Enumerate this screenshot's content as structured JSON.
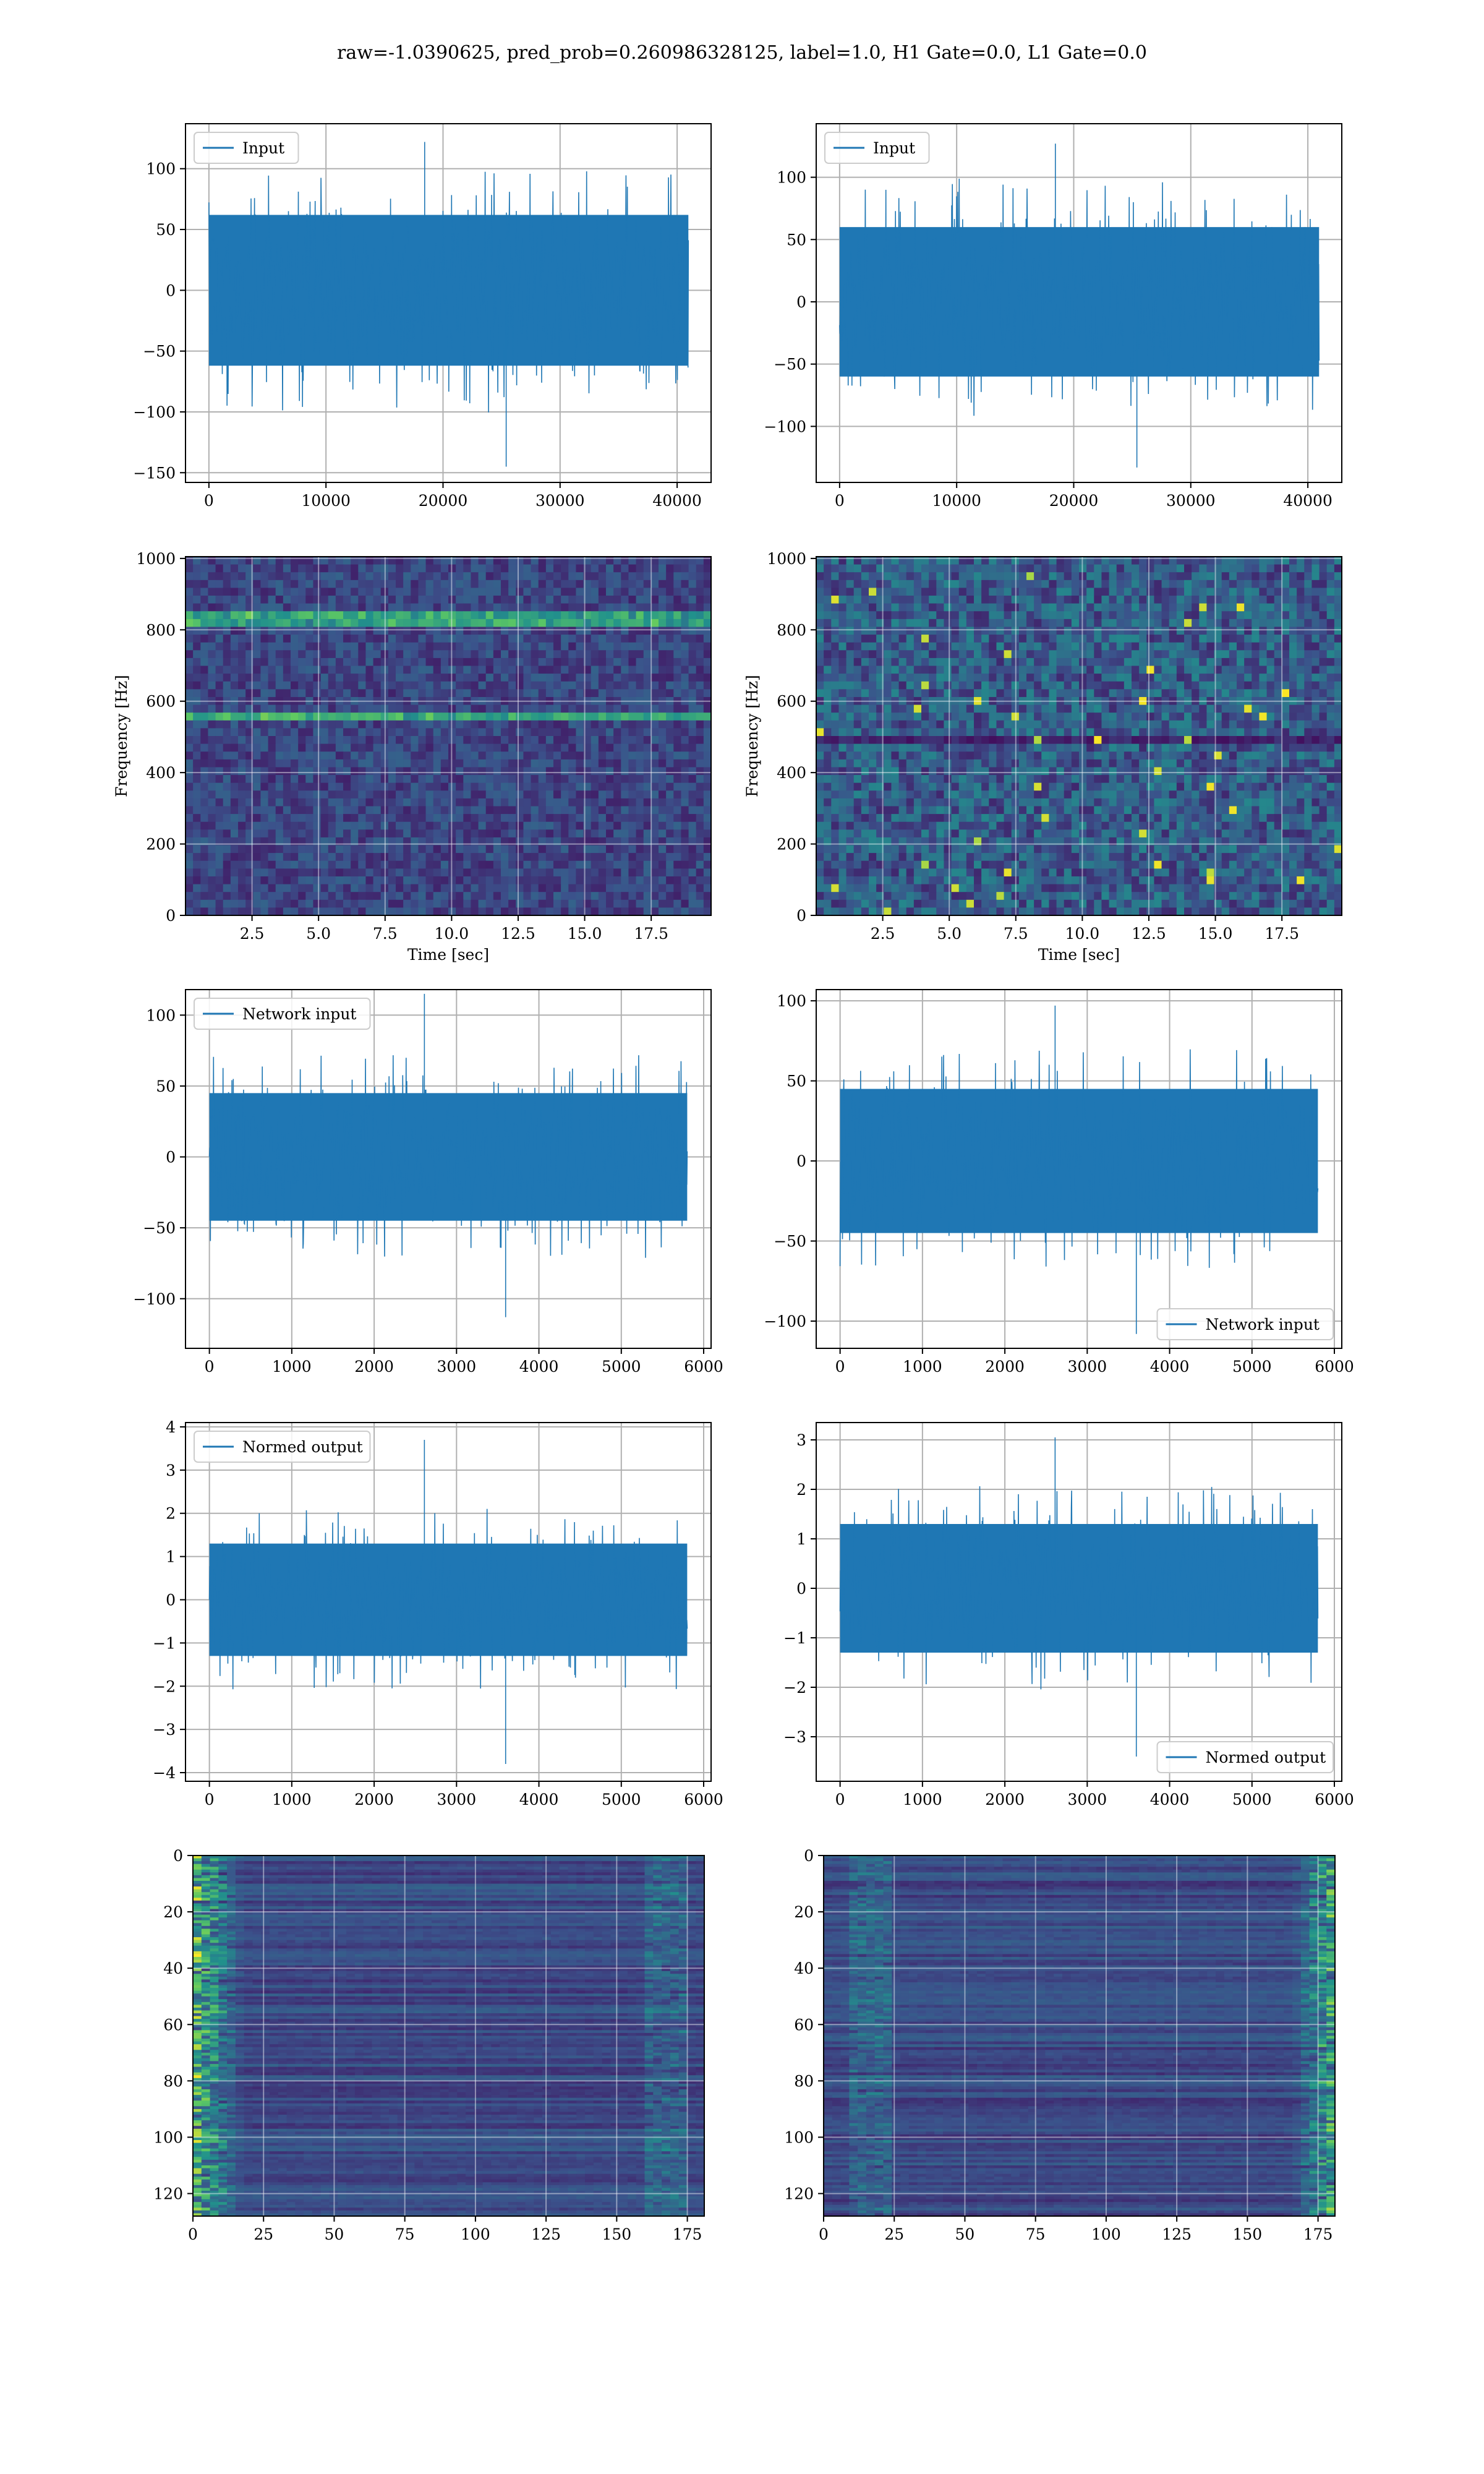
{
  "title": "raw=-1.0390625, pred_prob=0.260986328125, label=1.0, H1 Gate=0.0, L1 Gate=0.0",
  "colors": {
    "line": "#1f77b4",
    "grid": "#b0b0b0",
    "viridis_dark": "#440154",
    "viridis_mid": "#21918c",
    "viridis_bright": "#fde725"
  },
  "chart_data": [
    {
      "id": "r1l",
      "type": "line",
      "legend": "Input",
      "legend_loc": "upper left",
      "x": [
        0,
        40960
      ],
      "xlim": [
        -2000,
        42900
      ],
      "ylim": [
        -158,
        137
      ],
      "xticks": [
        0,
        10000,
        20000,
        30000,
        40000
      ],
      "yticks": [
        -150,
        -100,
        -50,
        0,
        50,
        100
      ],
      "xticklabels": [
        "0",
        "10000",
        "20000",
        "30000",
        "40000"
      ],
      "yticklabels": [
        "−150",
        "−100",
        "−50",
        "0",
        "50",
        "100"
      ],
      "envelope": {
        "typical": 62,
        "max": 122,
        "min": -145
      },
      "grid": true,
      "xlabel": "",
      "ylabel": ""
    },
    {
      "id": "r1r",
      "type": "line",
      "legend": "Input",
      "legend_loc": "upper left",
      "x": [
        0,
        40960
      ],
      "xlim": [
        -2000,
        42900
      ],
      "ylim": [
        -145,
        143
      ],
      "xticks": [
        0,
        10000,
        20000,
        30000,
        40000
      ],
      "yticks": [
        -100,
        -50,
        0,
        50,
        100
      ],
      "xticklabels": [
        "0",
        "10000",
        "20000",
        "30000",
        "40000"
      ],
      "yticklabels": [
        "−100",
        "−50",
        "0",
        "50",
        "100"
      ],
      "envelope": {
        "typical": 60,
        "max": 127,
        "min": -133
      },
      "grid": true,
      "xlabel": "",
      "ylabel": ""
    },
    {
      "id": "r2l",
      "type": "heatmap",
      "xlim": [
        0,
        19.75
      ],
      "ylim": [
        0,
        1005
      ],
      "xticks": [
        2.5,
        5.0,
        7.5,
        10.0,
        12.5,
        15.0,
        17.5
      ],
      "yticks": [
        0,
        200,
        400,
        600,
        800,
        1000
      ],
      "xticklabels": [
        "2.5",
        "5.0",
        "7.5",
        "10.0",
        "12.5",
        "15.0",
        "17.5"
      ],
      "yticklabels": [
        "0",
        "200",
        "400",
        "600",
        "800",
        "1000"
      ],
      "xlabel": "Time [sec]",
      "ylabel": "Frequency [Hz]",
      "colormap": "viridis",
      "bright_bands_hz": [
        830,
        555
      ],
      "grid": true
    },
    {
      "id": "r2r",
      "type": "heatmap",
      "xlim": [
        0,
        19.75
      ],
      "ylim": [
        0,
        1005
      ],
      "xticks": [
        2.5,
        5.0,
        7.5,
        10.0,
        12.5,
        15.0,
        17.5
      ],
      "yticks": [
        0,
        200,
        400,
        600,
        800,
        1000
      ],
      "xticklabels": [
        "2.5",
        "5.0",
        "7.5",
        "10.0",
        "12.5",
        "15.0",
        "17.5"
      ],
      "yticklabels": [
        "0",
        "200",
        "400",
        "600",
        "800",
        "1000"
      ],
      "xlabel": "Time [sec]",
      "ylabel": "Frequency [Hz]",
      "colormap": "viridis",
      "dark_band_hz": 490,
      "grid": true
    },
    {
      "id": "r3l",
      "type": "line",
      "legend": "Network input",
      "legend_loc": "upper left",
      "x": [
        0,
        5800
      ],
      "xlim": [
        -290,
        6090
      ],
      "ylim": [
        -135,
        118
      ],
      "xticks": [
        0,
        1000,
        2000,
        3000,
        4000,
        5000,
        6000
      ],
      "yticks": [
        -100,
        -50,
        0,
        50,
        100
      ],
      "xticklabels": [
        "0",
        "1000",
        "2000",
        "3000",
        "4000",
        "5000",
        "6000"
      ],
      "yticklabels": [
        "−100",
        "−50",
        "0",
        "50",
        "100"
      ],
      "envelope": {
        "typical": 45,
        "max": 115,
        "min": -113
      },
      "grid": true,
      "xlabel": "",
      "ylabel": ""
    },
    {
      "id": "r3r",
      "type": "line",
      "legend": "Network input",
      "legend_loc": "lower right",
      "x": [
        0,
        5800
      ],
      "xlim": [
        -290,
        6090
      ],
      "ylim": [
        -117,
        107
      ],
      "xticks": [
        0,
        1000,
        2000,
        3000,
        4000,
        5000,
        6000
      ],
      "yticks": [
        -100,
        -50,
        0,
        50,
        100
      ],
      "xticklabels": [
        "0",
        "1000",
        "2000",
        "3000",
        "4000",
        "5000",
        "6000"
      ],
      "yticklabels": [
        "−100",
        "−50",
        "0",
        "50",
        "100"
      ],
      "envelope": {
        "typical": 45,
        "max": 97,
        "min": -108
      },
      "grid": true,
      "xlabel": "",
      "ylabel": ""
    },
    {
      "id": "r4l",
      "type": "line",
      "legend": "Normed output",
      "legend_loc": "upper left",
      "x": [
        0,
        5800
      ],
      "xlim": [
        -290,
        6090
      ],
      "ylim": [
        -4.2,
        4.1
      ],
      "xticks": [
        0,
        1000,
        2000,
        3000,
        4000,
        5000,
        6000
      ],
      "yticks": [
        -4,
        -3,
        -2,
        -1,
        0,
        1,
        2,
        3,
        4
      ],
      "xticklabels": [
        "0",
        "1000",
        "2000",
        "3000",
        "4000",
        "5000",
        "6000"
      ],
      "yticklabels": [
        "−4",
        "−3",
        "−2",
        "−1",
        "0",
        "1",
        "2",
        "3",
        "4"
      ],
      "envelope": {
        "typical": 1.3,
        "max": 3.7,
        "min": -3.8
      },
      "grid": true,
      "xlabel": "",
      "ylabel": ""
    },
    {
      "id": "r4r",
      "type": "line",
      "legend": "Normed output",
      "legend_loc": "lower right",
      "x": [
        0,
        5800
      ],
      "xlim": [
        -290,
        6090
      ],
      "ylim": [
        -3.9,
        3.35
      ],
      "xticks": [
        0,
        1000,
        2000,
        3000,
        4000,
        5000,
        6000
      ],
      "yticks": [
        -3,
        -2,
        -1,
        0,
        1,
        2,
        3
      ],
      "xticklabels": [
        "0",
        "1000",
        "2000",
        "3000",
        "4000",
        "5000",
        "6000"
      ],
      "yticklabels": [
        "−3",
        "−2",
        "−1",
        "0",
        "1",
        "2",
        "3"
      ],
      "envelope": {
        "typical": 1.3,
        "max": 3.05,
        "min": -3.4
      },
      "grid": true,
      "xlabel": "",
      "ylabel": ""
    },
    {
      "id": "r5l",
      "type": "heatmap",
      "xlim": [
        0,
        181
      ],
      "ylim": [
        128,
        0
      ],
      "xticks": [
        0,
        25,
        50,
        75,
        100,
        125,
        150,
        175
      ],
      "yticks": [
        0,
        20,
        40,
        60,
        80,
        100,
        120
      ],
      "xticklabels": [
        "0",
        "25",
        "50",
        "75",
        "100",
        "125",
        "150",
        "175"
      ],
      "yticklabels": [
        "0",
        "20",
        "40",
        "60",
        "80",
        "100",
        "120"
      ],
      "colormap": "viridis",
      "bright_region": "left",
      "grid": true,
      "xlabel": "",
      "ylabel": ""
    },
    {
      "id": "r5r",
      "type": "heatmap",
      "xlim": [
        0,
        181
      ],
      "ylim": [
        128,
        0
      ],
      "xticks": [
        0,
        25,
        50,
        75,
        100,
        125,
        150,
        175
      ],
      "yticks": [
        0,
        20,
        40,
        60,
        80,
        100,
        120
      ],
      "xticklabels": [
        "0",
        "25",
        "50",
        "75",
        "100",
        "125",
        "150",
        "175"
      ],
      "yticklabels": [
        "0",
        "20",
        "40",
        "60",
        "80",
        "100",
        "120"
      ],
      "colormap": "viridis",
      "bright_region": "right",
      "grid": true,
      "xlabel": "",
      "ylabel": ""
    }
  ]
}
